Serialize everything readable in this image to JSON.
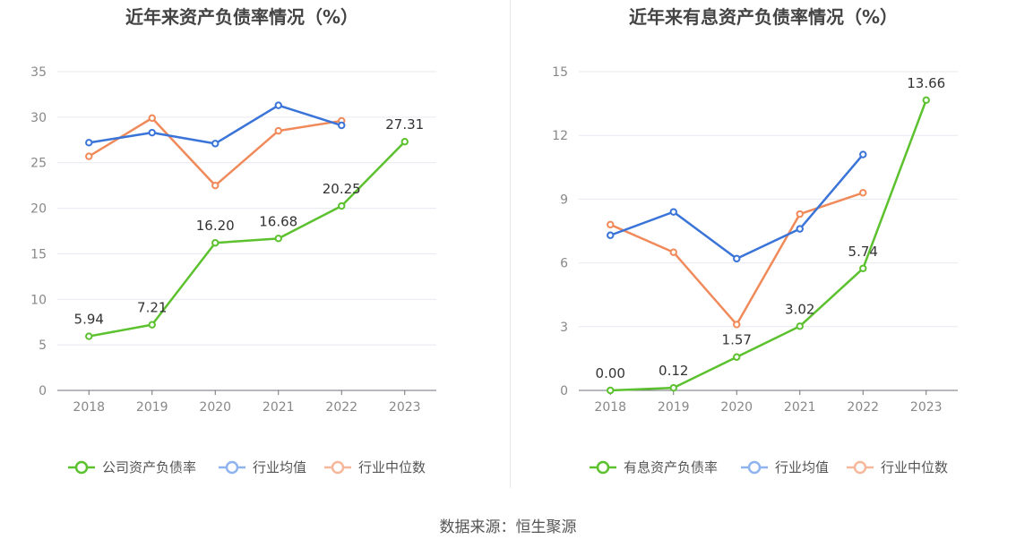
{
  "colors": {
    "company": "#5cc12e",
    "avg": "#3a74d8",
    "median": "#f08a5a",
    "legend_avg": "#8fb3ef",
    "legend_median": "#f6b79b",
    "axis_text": "#888888",
    "grid": "#e6e9f0",
    "label_text": "#333333",
    "title_text": "#444444"
  },
  "chart_data": [
    {
      "type": "line",
      "title": "近年来资产负债率情况（%）",
      "categories": [
        "2018",
        "2019",
        "2020",
        "2021",
        "2022",
        "2023"
      ],
      "ylim": [
        0,
        35
      ],
      "yticks": [
        0,
        5,
        10,
        15,
        20,
        25,
        30,
        35
      ],
      "series": [
        {
          "name": "公司资产负债率",
          "key": "company",
          "values": [
            5.94,
            7.21,
            16.2,
            16.68,
            20.25,
            27.31
          ],
          "labels": [
            "5.94",
            "7.21",
            "16.20",
            "16.68",
            "20.25",
            "27.31"
          ]
        },
        {
          "name": "行业均值",
          "key": "avg",
          "values": [
            27.2,
            28.3,
            27.1,
            31.3,
            29.1,
            null
          ]
        },
        {
          "name": "行业中位数",
          "key": "median",
          "values": [
            25.7,
            29.9,
            22.5,
            28.5,
            29.6,
            null
          ]
        }
      ]
    },
    {
      "type": "line",
      "title": "近年来有息资产负债率情况（%）",
      "categories": [
        "2018",
        "2019",
        "2020",
        "2021",
        "2022",
        "2023"
      ],
      "ylim": [
        0,
        15
      ],
      "yticks": [
        0,
        3,
        6,
        9,
        12,
        15
      ],
      "series": [
        {
          "name": "有息资产负债率",
          "key": "company",
          "values": [
            0.0,
            0.12,
            1.57,
            3.02,
            5.74,
            13.66
          ],
          "labels": [
            "0.00",
            "0.12",
            "1.57",
            "3.02",
            "5.74",
            "13.66"
          ]
        },
        {
          "name": "行业均值",
          "key": "avg",
          "values": [
            7.3,
            8.4,
            6.2,
            7.6,
            11.1,
            null
          ]
        },
        {
          "name": "行业中位数",
          "key": "median",
          "values": [
            7.8,
            6.5,
            3.1,
            8.3,
            9.3,
            null
          ]
        }
      ]
    }
  ],
  "source_text": "数据来源：恒生聚源"
}
